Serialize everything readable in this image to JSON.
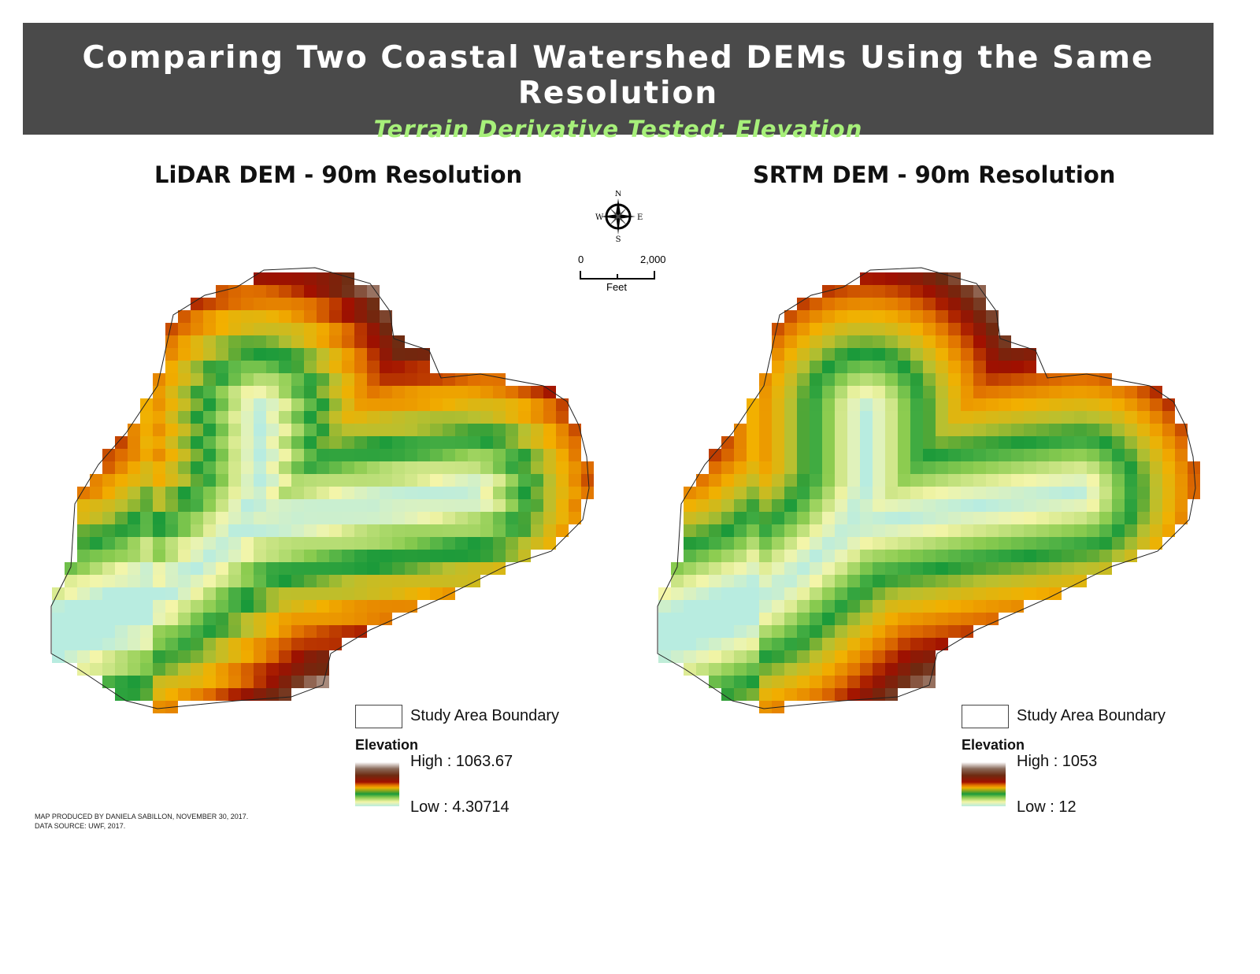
{
  "header": {
    "title": "Comparing Two Coastal Watershed DEMs Using the Same Resolution",
    "subtitle": "Terrain Derivative Tested: Elevation"
  },
  "maps": [
    {
      "title": "LiDAR DEM - 90m Resolution",
      "boundary_label": "Study Area Boundary",
      "legend_title": "Elevation",
      "high": "High : 1063.67",
      "low": "Low : 4.30714"
    },
    {
      "title": "SRTM DEM - 90m Resolution",
      "boundary_label": "Study Area Boundary",
      "legend_title": "Elevation",
      "high": "High : 1053",
      "low": "Low : 12"
    }
  ],
  "north_arrow": {
    "n": "N",
    "s": "S",
    "e": "E",
    "w": "W"
  },
  "scale_bar": {
    "start": "0",
    "end": "2,000",
    "unit": "Feet"
  },
  "credits": {
    "line1": "MAP PRODUCED BY DANIELA SABILLON, NOVEMBER 30, 2017.",
    "line2": "DATA SOURCE: UWF, 2017."
  },
  "colors": {
    "banner": "#4a4a4a",
    "subtitle": "#a7f07a",
    "ramp": [
      "#b8ece0",
      "#f4f5a8",
      "#8ccc50",
      "#1a9a3a",
      "#b8c030",
      "#f2b000",
      "#e07000",
      "#a01000",
      "#6e2a10",
      "#a08070",
      "#ffffff"
    ]
  }
}
